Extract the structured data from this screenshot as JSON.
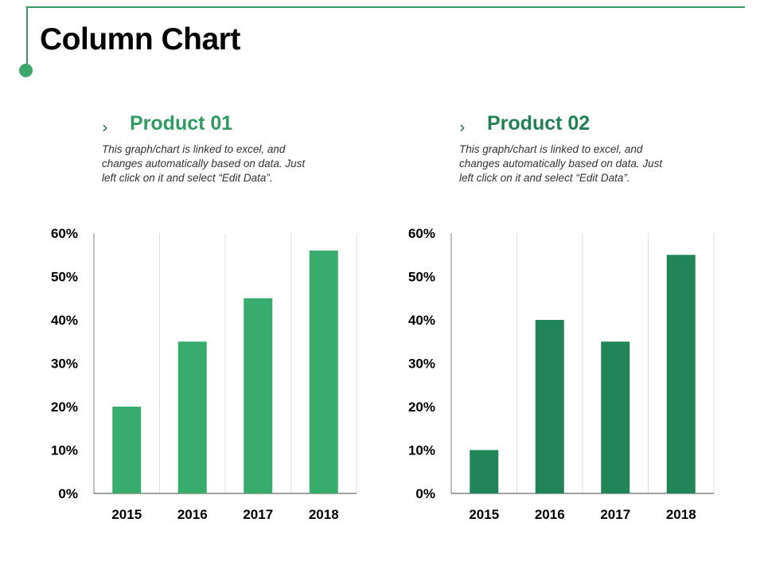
{
  "page": {
    "title": "Column Chart"
  },
  "colors": {
    "frame": "#3a9a68",
    "bar1": "#38ac6c",
    "bar2": "#228459",
    "title1": "#2f9a62",
    "title2": "#237f56"
  },
  "panels": [
    {
      "title": "Product 01",
      "description": "This graph/chart is linked to excel, and changes automatically based on data. Just left click on it and select “Edit Data”."
    },
    {
      "title": "Product 02",
      "description": "This graph/chart is linked to excel, and changes automatically based on data. Just left click on it and select “Edit Data”."
    }
  ],
  "chart_data": [
    {
      "type": "bar",
      "title": "Product 01",
      "categories": [
        "2015",
        "2016",
        "2017",
        "2018"
      ],
      "values": [
        20,
        35,
        45,
        56
      ],
      "y_ticks": [
        "0%",
        "10%",
        "20%",
        "30%",
        "40%",
        "50%",
        "60%"
      ],
      "ylim": [
        0,
        60
      ],
      "grid": "vertical"
    },
    {
      "type": "bar",
      "title": "Product 02",
      "categories": [
        "2015",
        "2016",
        "2017",
        "2018"
      ],
      "values": [
        10,
        40,
        35,
        55
      ],
      "y_ticks": [
        "0%",
        "10%",
        "20%",
        "30%",
        "40%",
        "50%",
        "60%"
      ],
      "ylim": [
        0,
        60
      ],
      "grid": "vertical"
    }
  ]
}
